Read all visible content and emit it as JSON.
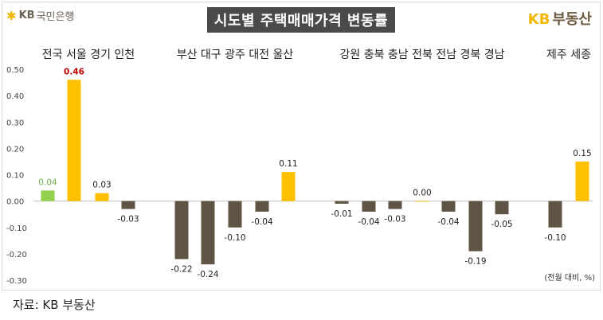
{
  "header": {
    "logo_text": "KB국민은행",
    "logo_kb": "KB",
    "logo_bank": "국민은행",
    "title": "시도별 주택매매가격 변동률",
    "brand_kb": "KB",
    "brand_name": "부동산"
  },
  "footer": {
    "source": "자료: KB 부동산"
  },
  "chart_data": {
    "type": "bar",
    "title": "시도별 주택매매가격 변동률",
    "unit_note": "(전월 대비, %)",
    "ylim": [
      -0.3,
      0.5
    ],
    "yticks": [
      "0.50",
      "0.40",
      "0.30",
      "0.20",
      "0.10",
      "0.00",
      "-0.10",
      "-0.20",
      "-0.30"
    ],
    "grid": false,
    "colors": {
      "green": "#92d050",
      "red_label": "#c00000",
      "gold": "#ffc000",
      "brown": "#5f5446"
    },
    "groups": [
      {
        "label": "전국 서울 경기 인천",
        "categories": [
          "전국",
          "서울",
          "경기",
          "인천"
        ]
      },
      {
        "label": "부산 대구 광주 대전 울산",
        "categories": [
          "부산",
          "대구",
          "광주",
          "대전",
          "울산"
        ]
      },
      {
        "label": "강원 충북 충남 전북 전남 경북 경남",
        "categories": [
          "강원",
          "충북",
          "충남",
          "전북",
          "전남",
          "경북",
          "경남"
        ]
      },
      {
        "label": "제주 세종",
        "categories": [
          "제주",
          "세종"
        ]
      }
    ],
    "categories": [
      "전국",
      "서울",
      "경기",
      "인천",
      "부산",
      "대구",
      "광주",
      "대전",
      "울산",
      "강원",
      "충북",
      "충남",
      "전북",
      "전남",
      "경북",
      "경남",
      "제주",
      "세종"
    ],
    "values": [
      0.04,
      0.46,
      0.03,
      -0.03,
      -0.22,
      -0.24,
      -0.1,
      -0.04,
      0.11,
      -0.01,
      -0.04,
      -0.03,
      0.0,
      -0.04,
      -0.19,
      -0.05,
      -0.1,
      0.15
    ],
    "labels": [
      "0.04",
      "0.46",
      "0.03",
      "-0.03",
      "-0.22",
      "-0.24",
      "-0.10",
      "-0.04",
      "0.11",
      "-0.01",
      "-0.04",
      "-0.03",
      "0.00",
      "-0.04",
      "-0.19",
      "-0.05",
      "-0.10",
      "0.15"
    ],
    "bar_colors": [
      "green",
      "gold",
      "gold",
      "brown",
      "brown",
      "brown",
      "brown",
      "brown",
      "gold",
      "brown",
      "brown",
      "brown",
      "gold",
      "brown",
      "brown",
      "brown",
      "brown",
      "gold"
    ],
    "label_colors": [
      "green",
      "red_label",
      "dark",
      "dark",
      "dark",
      "dark",
      "dark",
      "dark",
      "dark",
      "dark",
      "dark",
      "dark",
      "dark",
      "dark",
      "dark",
      "dark",
      "dark",
      "dark"
    ]
  }
}
